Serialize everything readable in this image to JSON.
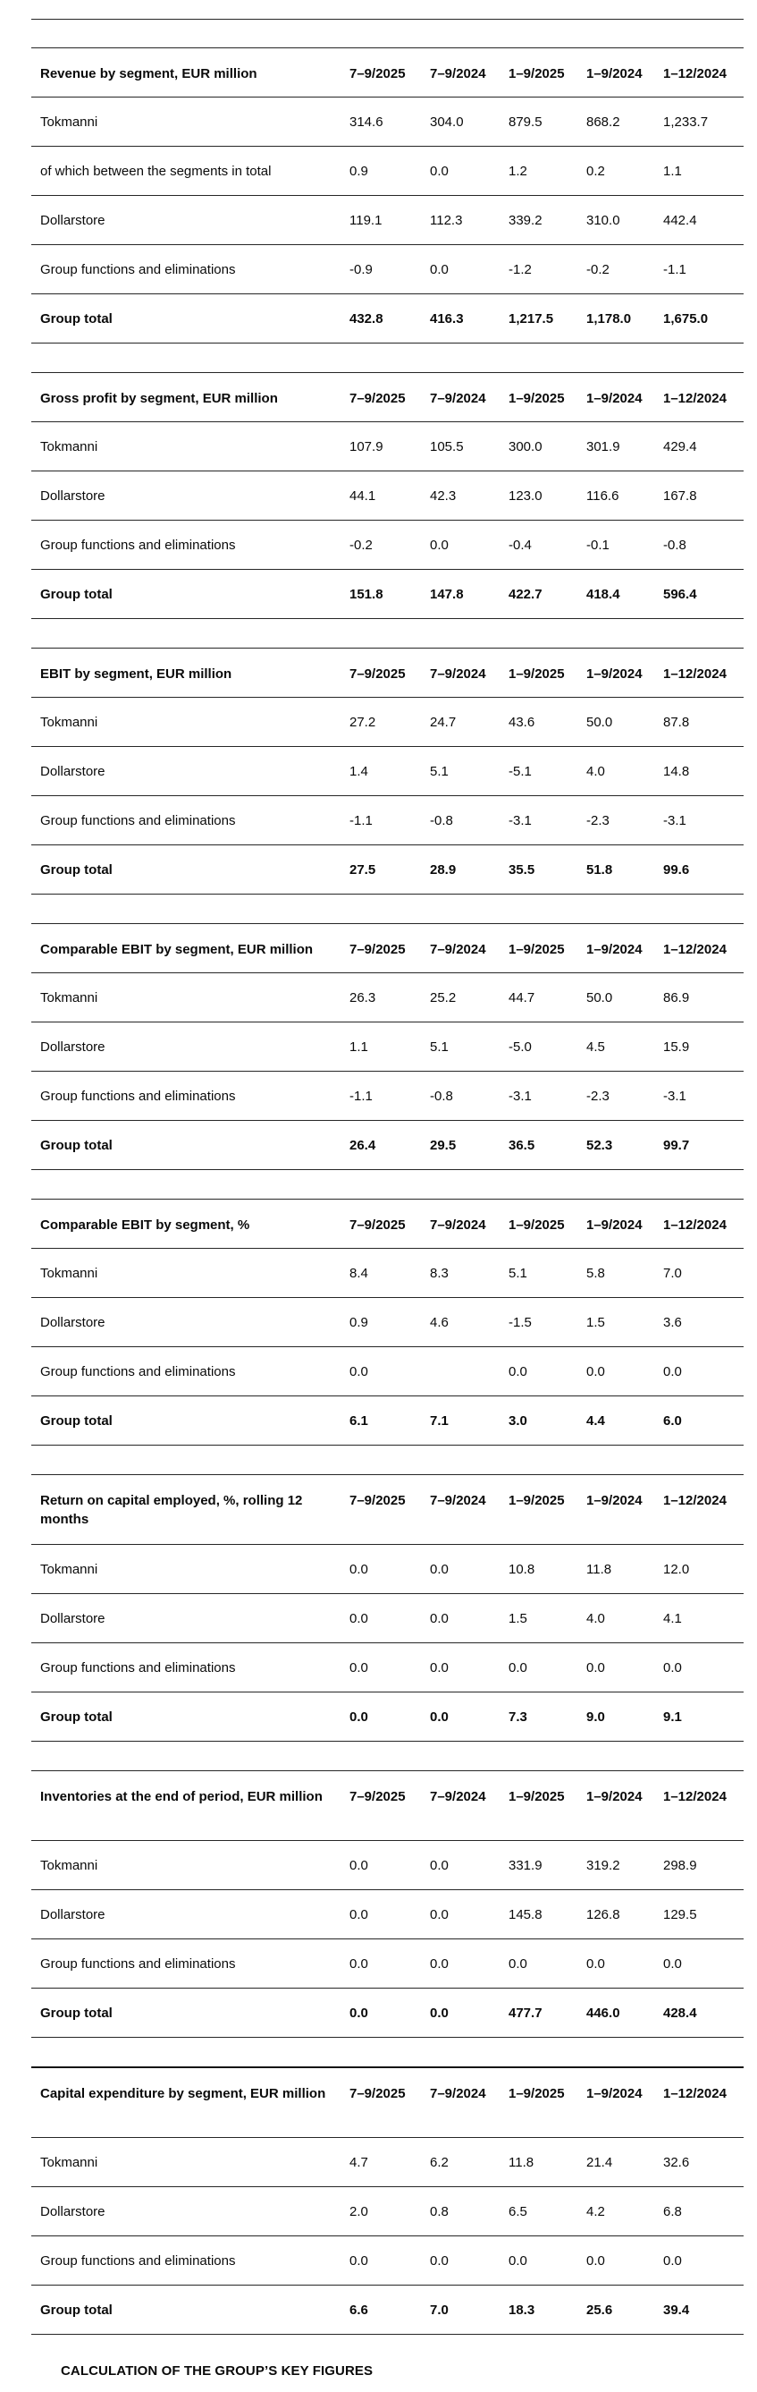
{
  "columns": [
    "7–9/2025",
    "7–9/2024",
    "1–9/2025",
    "1–9/2024",
    "1–12/2024"
  ],
  "tables": [
    {
      "title": "Revenue by segment, EUR million",
      "rows": [
        {
          "label": "Tokmanni",
          "values": [
            "314.6",
            "304.0",
            "879.5",
            "868.2",
            "1,233.7"
          ],
          "bold": false
        },
        {
          "label": "of which between the segments in total",
          "values": [
            "0.9",
            "0.0",
            "1.2",
            "0.2",
            "1.1"
          ],
          "bold": false
        },
        {
          "label": "Dollarstore",
          "values": [
            "119.1",
            "112.3",
            "339.2",
            "310.0",
            "442.4"
          ],
          "bold": false
        },
        {
          "label": "Group functions and eliminations",
          "values": [
            "-0.9",
            "0.0",
            "-1.2",
            "-0.2",
            "-1.1"
          ],
          "bold": false
        },
        {
          "label": "Group total",
          "values": [
            "432.8",
            "416.3",
            "1,217.5",
            "1,178.0",
            "1,675.0"
          ],
          "bold": true
        }
      ]
    },
    {
      "title": "Gross profit by segment, EUR million",
      "rows": [
        {
          "label": "Tokmanni",
          "values": [
            "107.9",
            "105.5",
            "300.0",
            "301.9",
            "429.4"
          ],
          "bold": false
        },
        {
          "label": "Dollarstore",
          "values": [
            "44.1",
            "42.3",
            "123.0",
            "116.6",
            "167.8"
          ],
          "bold": false
        },
        {
          "label": "Group functions and eliminations",
          "values": [
            "-0.2",
            "0.0",
            "-0.4",
            "-0.1",
            "-0.8"
          ],
          "bold": false
        },
        {
          "label": "Group total",
          "values": [
            "151.8",
            "147.8",
            "422.7",
            "418.4",
            "596.4"
          ],
          "bold": true
        }
      ]
    },
    {
      "title": "EBIT by segment, EUR million",
      "rows": [
        {
          "label": "Tokmanni",
          "values": [
            "27.2",
            "24.7",
            "43.6",
            "50.0",
            "87.8"
          ],
          "bold": false
        },
        {
          "label": "Dollarstore",
          "values": [
            "1.4",
            "5.1",
            "-5.1",
            "4.0",
            "14.8"
          ],
          "bold": false
        },
        {
          "label": "Group functions and eliminations",
          "values": [
            "-1.1",
            "-0.8",
            "-3.1",
            "-2.3",
            "-3.1"
          ],
          "bold": false
        },
        {
          "label": "Group total",
          "values": [
            "27.5",
            "28.9",
            "35.5",
            "51.8",
            "99.6"
          ],
          "bold": true
        }
      ]
    },
    {
      "title": "Comparable EBIT by segment, EUR million",
      "rows": [
        {
          "label": "Tokmanni",
          "values": [
            "26.3",
            "25.2",
            "44.7",
            "50.0",
            "86.9"
          ],
          "bold": false
        },
        {
          "label": "Dollarstore",
          "values": [
            "1.1",
            "5.1",
            "-5.0",
            "4.5",
            "15.9"
          ],
          "bold": false
        },
        {
          "label": "Group functions and eliminations",
          "values": [
            "-1.1",
            "-0.8",
            "-3.1",
            "-2.3",
            "-3.1"
          ],
          "bold": false
        },
        {
          "label": "Group total",
          "values": [
            "26.4",
            "29.5",
            "36.5",
            "52.3",
            "99.7"
          ],
          "bold": true
        }
      ]
    },
    {
      "title": "Comparable EBIT by segment, %",
      "rows": [
        {
          "label": "Tokmanni",
          "values": [
            "8.4",
            "8.3",
            "5.1",
            "5.8",
            "7.0"
          ],
          "bold": false
        },
        {
          "label": "Dollarstore",
          "values": [
            "0.9",
            "4.6",
            "-1.5",
            "1.5",
            "3.6"
          ],
          "bold": false
        },
        {
          "label": "Group functions and eliminations",
          "values": [
            "0.0",
            "",
            "0.0",
            "0.0",
            "0.0"
          ],
          "bold": false
        },
        {
          "label": "Group total",
          "values": [
            "6.1",
            "7.1",
            "3.0",
            "4.4",
            "6.0"
          ],
          "bold": true
        }
      ]
    },
    {
      "title": "Return on capital employed, %, rolling 12 months",
      "twoline_header": true,
      "rows": [
        {
          "label": "Tokmanni",
          "values": [
            "0.0",
            "0.0",
            "10.8",
            "11.8",
            "12.0"
          ],
          "bold": false
        },
        {
          "label": "Dollarstore",
          "values": [
            "0.0",
            "0.0",
            "1.5",
            "4.0",
            "4.1"
          ],
          "bold": false
        },
        {
          "label": "Group functions and eliminations",
          "values": [
            "0.0",
            "0.0",
            "0.0",
            "0.0",
            "0.0"
          ],
          "bold": false
        },
        {
          "label": "Group total",
          "values": [
            "0.0",
            "0.0",
            "7.3",
            "9.0",
            "9.1"
          ],
          "bold": true
        }
      ]
    },
    {
      "title": "Inventories at the end of period, EUR million",
      "twoline_header": true,
      "rows": [
        {
          "label": "Tokmanni",
          "values": [
            "0.0",
            "0.0",
            "331.9",
            "319.2",
            "298.9"
          ],
          "bold": false
        },
        {
          "label": "Dollarstore",
          "values": [
            "0.0",
            "0.0",
            "145.8",
            "126.8",
            "129.5"
          ],
          "bold": false
        },
        {
          "label": "Group functions and eliminations",
          "values": [
            "0.0",
            "0.0",
            "0.0",
            "0.0",
            "0.0"
          ],
          "bold": false
        },
        {
          "label": "Group total",
          "values": [
            "0.0",
            "0.0",
            "477.7",
            "446.0",
            "428.4"
          ],
          "bold": true
        }
      ]
    },
    {
      "title": "Capital expenditure by segment, EUR million",
      "twoline_header": true,
      "thick_top": true,
      "rows": [
        {
          "label": "Tokmanni",
          "values": [
            "4.7",
            "6.2",
            "11.8",
            "21.4",
            "32.6"
          ],
          "bold": false
        },
        {
          "label": "Dollarstore",
          "values": [
            "2.0",
            "0.8",
            "6.5",
            "4.2",
            "6.8"
          ],
          "bold": false
        },
        {
          "label": "Group functions and eliminations",
          "values": [
            "0.0",
            "0.0",
            "0.0",
            "0.0",
            "0.0"
          ],
          "bold": false
        },
        {
          "label": "Group total",
          "values": [
            "6.6",
            "7.0",
            "18.3",
            "25.6",
            "39.4"
          ],
          "bold": true
        }
      ]
    }
  ],
  "footer": {
    "title": "CALCULATION OF THE GROUP’S KEY FIGURES"
  }
}
